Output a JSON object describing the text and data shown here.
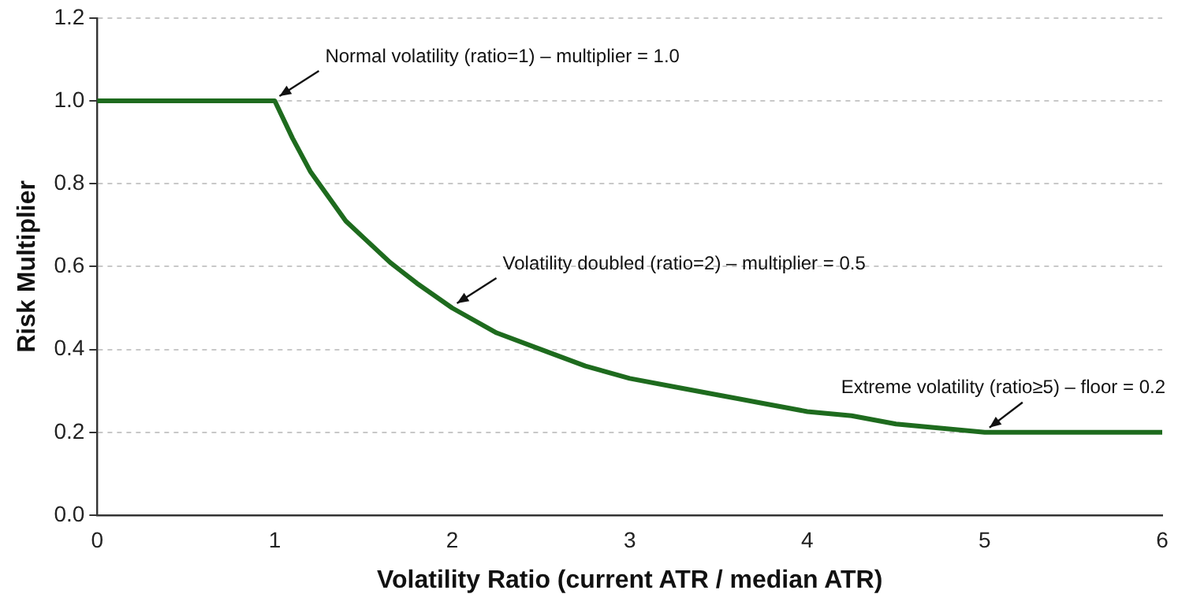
{
  "chart_data": {
    "type": "line",
    "xlabel": "Volatility Ratio (current ATR / median ATR)",
    "ylabel": "Risk Multiplier",
    "xlim": [
      0,
      6
    ],
    "xticks": [
      0,
      1,
      2,
      3,
      4,
      5,
      6
    ],
    "ylim": [
      0,
      1.2
    ],
    "yticks": [
      {
        "value": 0,
        "label": "0.0"
      },
      {
        "value": 0.2,
        "label": "0.2"
      },
      {
        "value": 0.4,
        "label": "0.4"
      },
      {
        "value": 0.6,
        "label": "0.6"
      },
      {
        "value": 0.8,
        "label": "0.8"
      },
      {
        "value": 1,
        "label": "1.0"
      },
      {
        "value": 1.2,
        "label": "1.2"
      }
    ],
    "grid": "y",
    "legend": false,
    "marker": "none",
    "line_style": "solid",
    "series": [
      {
        "color": "#1e6b1e",
        "x": [
          0,
          1,
          1.1,
          1.2,
          1.3,
          1.4,
          1.5,
          1.65,
          1.8,
          2,
          2.25,
          2.5,
          2.75,
          3,
          3.25,
          3.5,
          3.75,
          4,
          4.25,
          4.5,
          4.75,
          5,
          6
        ],
        "values": [
          1,
          1,
          0.91,
          0.83,
          0.77,
          0.71,
          0.67,
          0.61,
          0.56,
          0.5,
          0.44,
          0.4,
          0.36,
          0.33,
          0.31,
          0.29,
          0.27,
          0.25,
          0.24,
          0.22,
          0.21,
          0.2,
          0.2
        ]
      }
    ],
    "annotations": [
      {
        "text": "Normal volatility (ratio=1) – multiplier = 1.0",
        "x": 1,
        "y": 1
      },
      {
        "text": "Volatility doubled (ratio=2) – multiplier = 0.5",
        "x": 2,
        "y": 0.5
      },
      {
        "text": "Extreme volatility (ratio≥5) – floor = 0.2",
        "x": 5,
        "y": 0.2
      }
    ]
  }
}
